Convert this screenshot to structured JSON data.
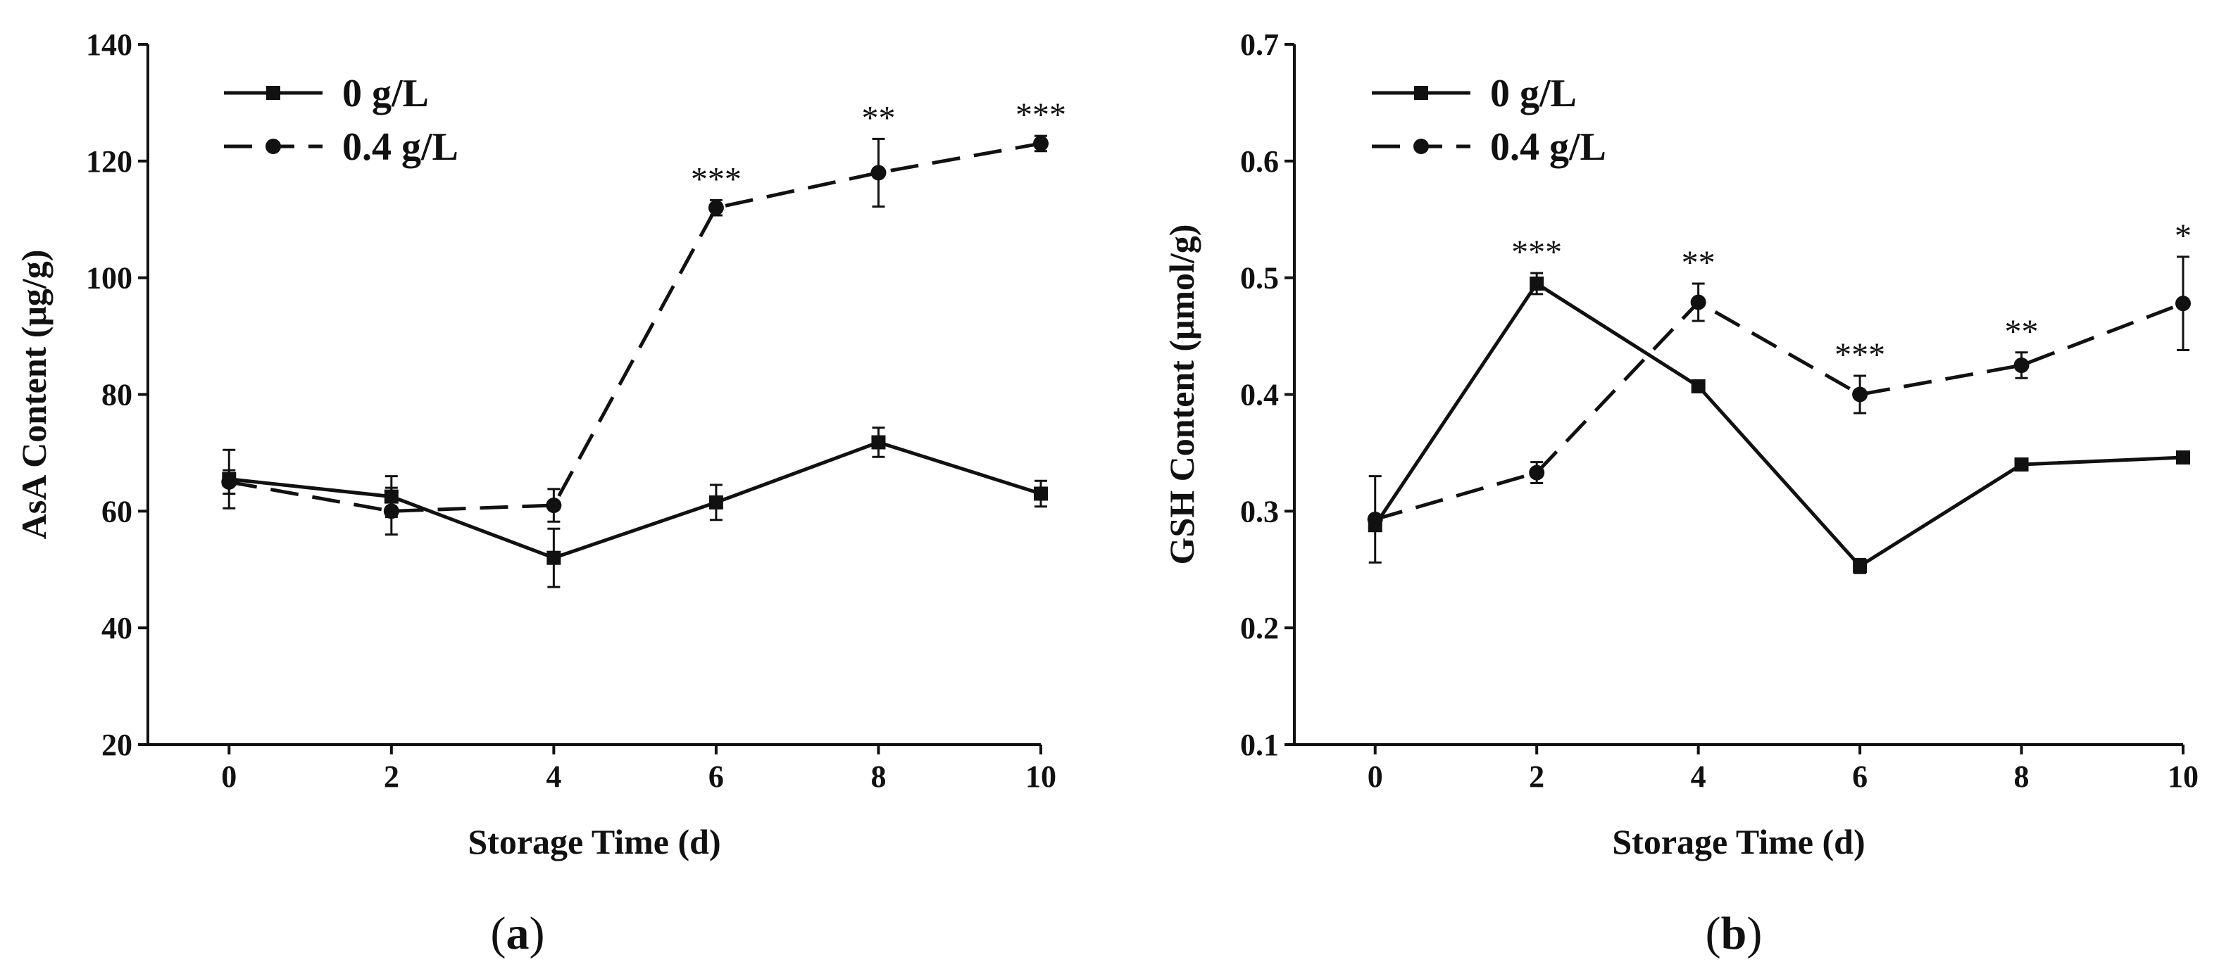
{
  "chart_data": [
    {
      "type": "line",
      "panel_label": "a",
      "xlabel": "Storage Time (d)",
      "ylabel": "AsA Content (μg/g)",
      "x": [
        0,
        2,
        4,
        6,
        8,
        10
      ],
      "xlim": [
        -1,
        10
      ],
      "ylim": [
        20,
        140
      ],
      "xticks": [
        "0",
        "2",
        "4",
        "6",
        "8",
        "10"
      ],
      "yticks": [
        "20",
        "40",
        "60",
        "80",
        "100",
        "120",
        "140"
      ],
      "legend": "top-left",
      "series": [
        {
          "name": "0 g/L",
          "marker": "square",
          "dash": "solid",
          "values": [
            65.5,
            62.5,
            52.0,
            61.5,
            71.8,
            63.0
          ],
          "errors": [
            5.0,
            3.5,
            5.0,
            3.0,
            2.5,
            2.2
          ]
        },
        {
          "name": "0.4 g/L",
          "marker": "circle",
          "dash": "dashed",
          "values": [
            65.0,
            60.0,
            61.0,
            112.0,
            118.0,
            123.0
          ],
          "errors": [
            2.0,
            4.0,
            2.8,
            1.3,
            5.8,
            1.3
          ]
        }
      ],
      "significance": [
        {
          "x": 6,
          "label": "***"
        },
        {
          "x": 8,
          "label": "**"
        },
        {
          "x": 10,
          "label": "***"
        }
      ]
    },
    {
      "type": "line",
      "panel_label": "b",
      "xlabel": "Storage Time (d)",
      "ylabel": "GSH Content (μmol/g)",
      "x": [
        0,
        2,
        4,
        6,
        8,
        10
      ],
      "xlim": [
        -1,
        10
      ],
      "ylim": [
        0.1,
        0.7
      ],
      "xticks": [
        "0",
        "2",
        "4",
        "6",
        "8",
        "10"
      ],
      "yticks": [
        "0.1",
        "0.2",
        "0.3",
        "0.4",
        "0.5",
        "0.6",
        "0.7"
      ],
      "legend": "top-left",
      "series": [
        {
          "name": "0 g/L",
          "marker": "square",
          "dash": "solid",
          "values": [
            0.288,
            0.495,
            0.407,
            0.253,
            0.34,
            0.346
          ],
          "errors": [
            0.004,
            0.009,
            0.005,
            0.006,
            0.004,
            0.003
          ]
        },
        {
          "name": "0.4 g/L",
          "marker": "circle",
          "dash": "dashed",
          "values": [
            0.293,
            0.333,
            0.479,
            0.4,
            0.425,
            0.478
          ],
          "errors": [
            0.037,
            0.009,
            0.016,
            0.016,
            0.011,
            0.04
          ]
        }
      ],
      "significance": [
        {
          "x": 2,
          "label": "***"
        },
        {
          "x": 4,
          "label": "**"
        },
        {
          "x": 6,
          "label": "***"
        },
        {
          "x": 8,
          "label": "**"
        },
        {
          "x": 10,
          "label": "*"
        }
      ]
    }
  ]
}
